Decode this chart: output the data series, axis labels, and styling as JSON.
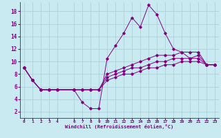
{
  "xlabel": "Windchill (Refroidissement éolien,°C)",
  "background_color": "#c8eaf0",
  "line_color": "#800080",
  "grid_color": "#a8ccd8",
  "xlim": [
    -0.5,
    23.5
  ],
  "ylim": [
    1.0,
    19.5
  ],
  "xticks": [
    0,
    1,
    2,
    3,
    4,
    6,
    7,
    8,
    9,
    10,
    11,
    12,
    13,
    14,
    15,
    16,
    17,
    18,
    19,
    20,
    21,
    22,
    23
  ],
  "yticks": [
    2,
    4,
    6,
    8,
    10,
    12,
    14,
    16,
    18
  ],
  "series": [
    {
      "x": [
        0,
        1,
        2,
        3,
        4,
        6,
        7,
        8,
        9,
        10,
        11,
        12,
        13,
        14,
        15,
        16,
        17,
        18,
        19,
        20,
        21,
        22,
        23
      ],
      "y": [
        9,
        7,
        5.5,
        5.5,
        5.5,
        5.5,
        3.5,
        2.5,
        2.5,
        10.5,
        12.5,
        14.5,
        17.0,
        15.5,
        19.0,
        17.5,
        14.5,
        12.0,
        11.5,
        10.5,
        10.5,
        9.5,
        9.5
      ]
    },
    {
      "x": [
        0,
        1,
        2,
        3,
        4,
        6,
        7,
        8,
        9,
        10,
        11,
        12,
        13,
        14,
        15,
        16,
        17,
        18,
        19,
        20,
        21,
        22,
        23
      ],
      "y": [
        9,
        7,
        5.5,
        5.5,
        5.5,
        5.5,
        5.5,
        5.5,
        5.5,
        8.0,
        8.5,
        9.0,
        9.5,
        10.0,
        10.5,
        11.0,
        11.0,
        11.0,
        11.5,
        11.5,
        11.5,
        9.5,
        9.5
      ]
    },
    {
      "x": [
        0,
        1,
        2,
        3,
        4,
        6,
        7,
        8,
        9,
        10,
        11,
        12,
        13,
        14,
        15,
        16,
        17,
        18,
        19,
        20,
        21,
        22,
        23
      ],
      "y": [
        9,
        7,
        5.5,
        5.5,
        5.5,
        5.5,
        5.5,
        5.5,
        5.5,
        7.5,
        8.0,
        8.5,
        9.0,
        9.0,
        9.5,
        10.0,
        10.0,
        10.5,
        10.5,
        10.5,
        11.0,
        9.5,
        9.5
      ]
    },
    {
      "x": [
        0,
        1,
        2,
        3,
        4,
        6,
        7,
        8,
        9,
        10,
        11,
        12,
        13,
        14,
        15,
        16,
        17,
        18,
        19,
        20,
        21,
        22,
        23
      ],
      "y": [
        9,
        7,
        5.5,
        5.5,
        5.5,
        5.5,
        5.5,
        5.5,
        5.5,
        7.0,
        7.5,
        8.0,
        8.0,
        8.5,
        9.0,
        9.0,
        9.5,
        9.5,
        10.0,
        10.0,
        10.0,
        9.5,
        9.5
      ]
    }
  ]
}
